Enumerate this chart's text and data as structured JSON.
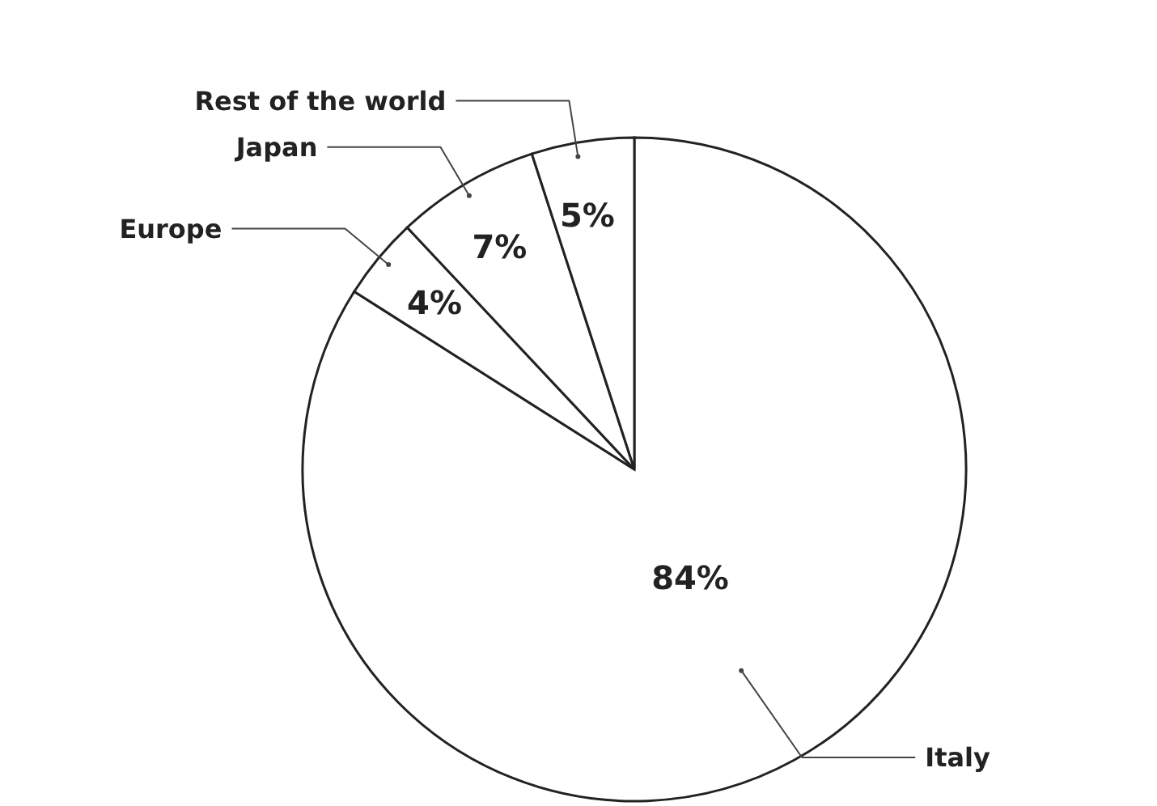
{
  "chart_data": {
    "type": "pie",
    "categories": [
      "Italy",
      "Europe",
      "Japan",
      "Rest of the world"
    ],
    "values": [
      84,
      4,
      7,
      5
    ],
    "value_labels": [
      "84%",
      "4%",
      "7%",
      "5%"
    ],
    "colors": [
      "#ffffff",
      "#ffffff",
      "#ffffff",
      "#ffffff"
    ]
  }
}
